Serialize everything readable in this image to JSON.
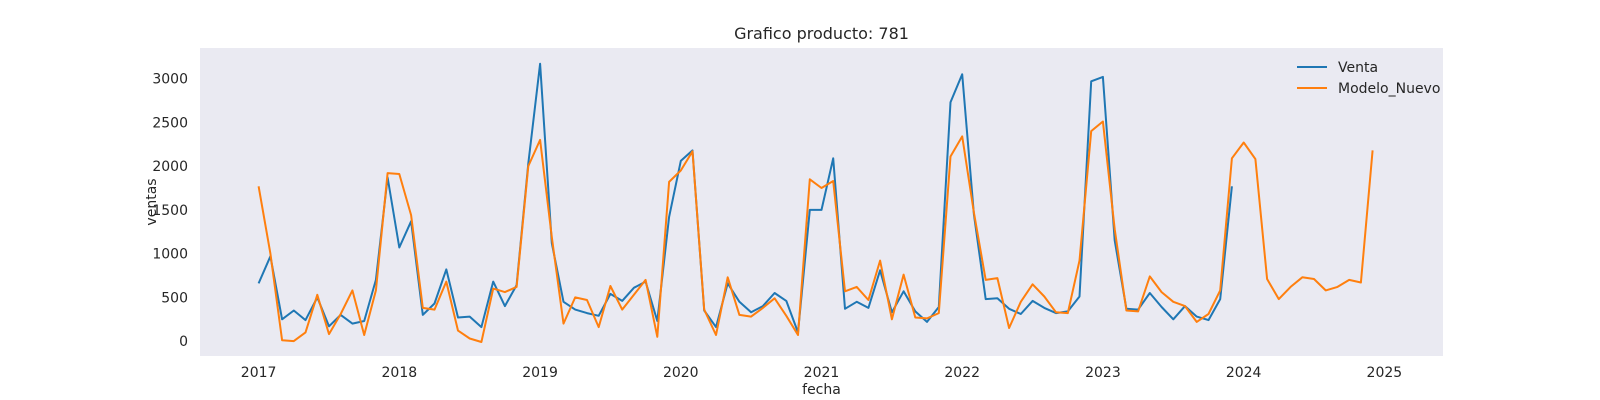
{
  "chart_data": {
    "type": "line",
    "title": "Grafico producto: 781",
    "xlabel": "fecha",
    "ylabel": "ventas",
    "x_start": "2017-01",
    "x_ticks": [
      "2017",
      "2018",
      "2019",
      "2020",
      "2021",
      "2022",
      "2023",
      "2024",
      "2025"
    ],
    "y_ticks": [
      0,
      500,
      1000,
      1500,
      2000,
      2500,
      3000
    ],
    "xlim": [
      "2016-08",
      "2025-06"
    ],
    "ylim": [
      -170,
      3350
    ],
    "grid": false,
    "legend_position": "top-right",
    "colors": {
      "plot_bg": "#eaeaf2",
      "Venta": "#1f77b4",
      "Modelo_Nuevo": "#ff7f0e"
    },
    "series": [
      {
        "name": "Venta",
        "values": [
          660,
          970,
          250,
          350,
          240,
          500,
          170,
          300,
          200,
          230,
          700,
          1870,
          1070,
          1370,
          300,
          430,
          820,
          270,
          280,
          160,
          680,
          400,
          640,
          2030,
          3170,
          1120,
          450,
          360,
          320,
          290,
          540,
          460,
          610,
          680,
          230,
          1420,
          2060,
          2180,
          350,
          160,
          660,
          450,
          330,
          400,
          550,
          460,
          100,
          1500,
          1500,
          2090,
          370,
          450,
          380,
          810,
          330,
          570,
          340,
          220,
          390,
          2730,
          3050,
          1450,
          480,
          490,
          370,
          310,
          460,
          380,
          320,
          340,
          510,
          2970,
          3020,
          1150,
          370,
          360,
          550,
          390,
          250,
          400,
          280,
          240,
          480,
          1770
        ]
      },
      {
        "name": "Modelo_Nuevo",
        "values": [
          1770,
          1000,
          10,
          0,
          100,
          530,
          80,
          310,
          580,
          70,
          580,
          1920,
          1910,
          1440,
          380,
          360,
          680,
          120,
          30,
          -10,
          600,
          560,
          620,
          2000,
          2300,
          1190,
          200,
          500,
          470,
          160,
          630,
          360,
          530,
          700,
          50,
          1820,
          1950,
          2170,
          360,
          70,
          730,
          300,
          280,
          380,
          490,
          290,
          70,
          1850,
          1750,
          1830,
          570,
          620,
          470,
          920,
          250,
          760,
          270,
          260,
          320,
          2110,
          2340,
          1470,
          700,
          720,
          150,
          450,
          650,
          510,
          330,
          320,
          920,
          2400,
          2510,
          1280,
          350,
          340,
          740,
          560,
          450,
          400,
          220,
          310,
          580,
          2090,
          2270,
          2080,
          710,
          480,
          620,
          730,
          710,
          580,
          620,
          700,
          670,
          2180
        ]
      }
    ]
  }
}
